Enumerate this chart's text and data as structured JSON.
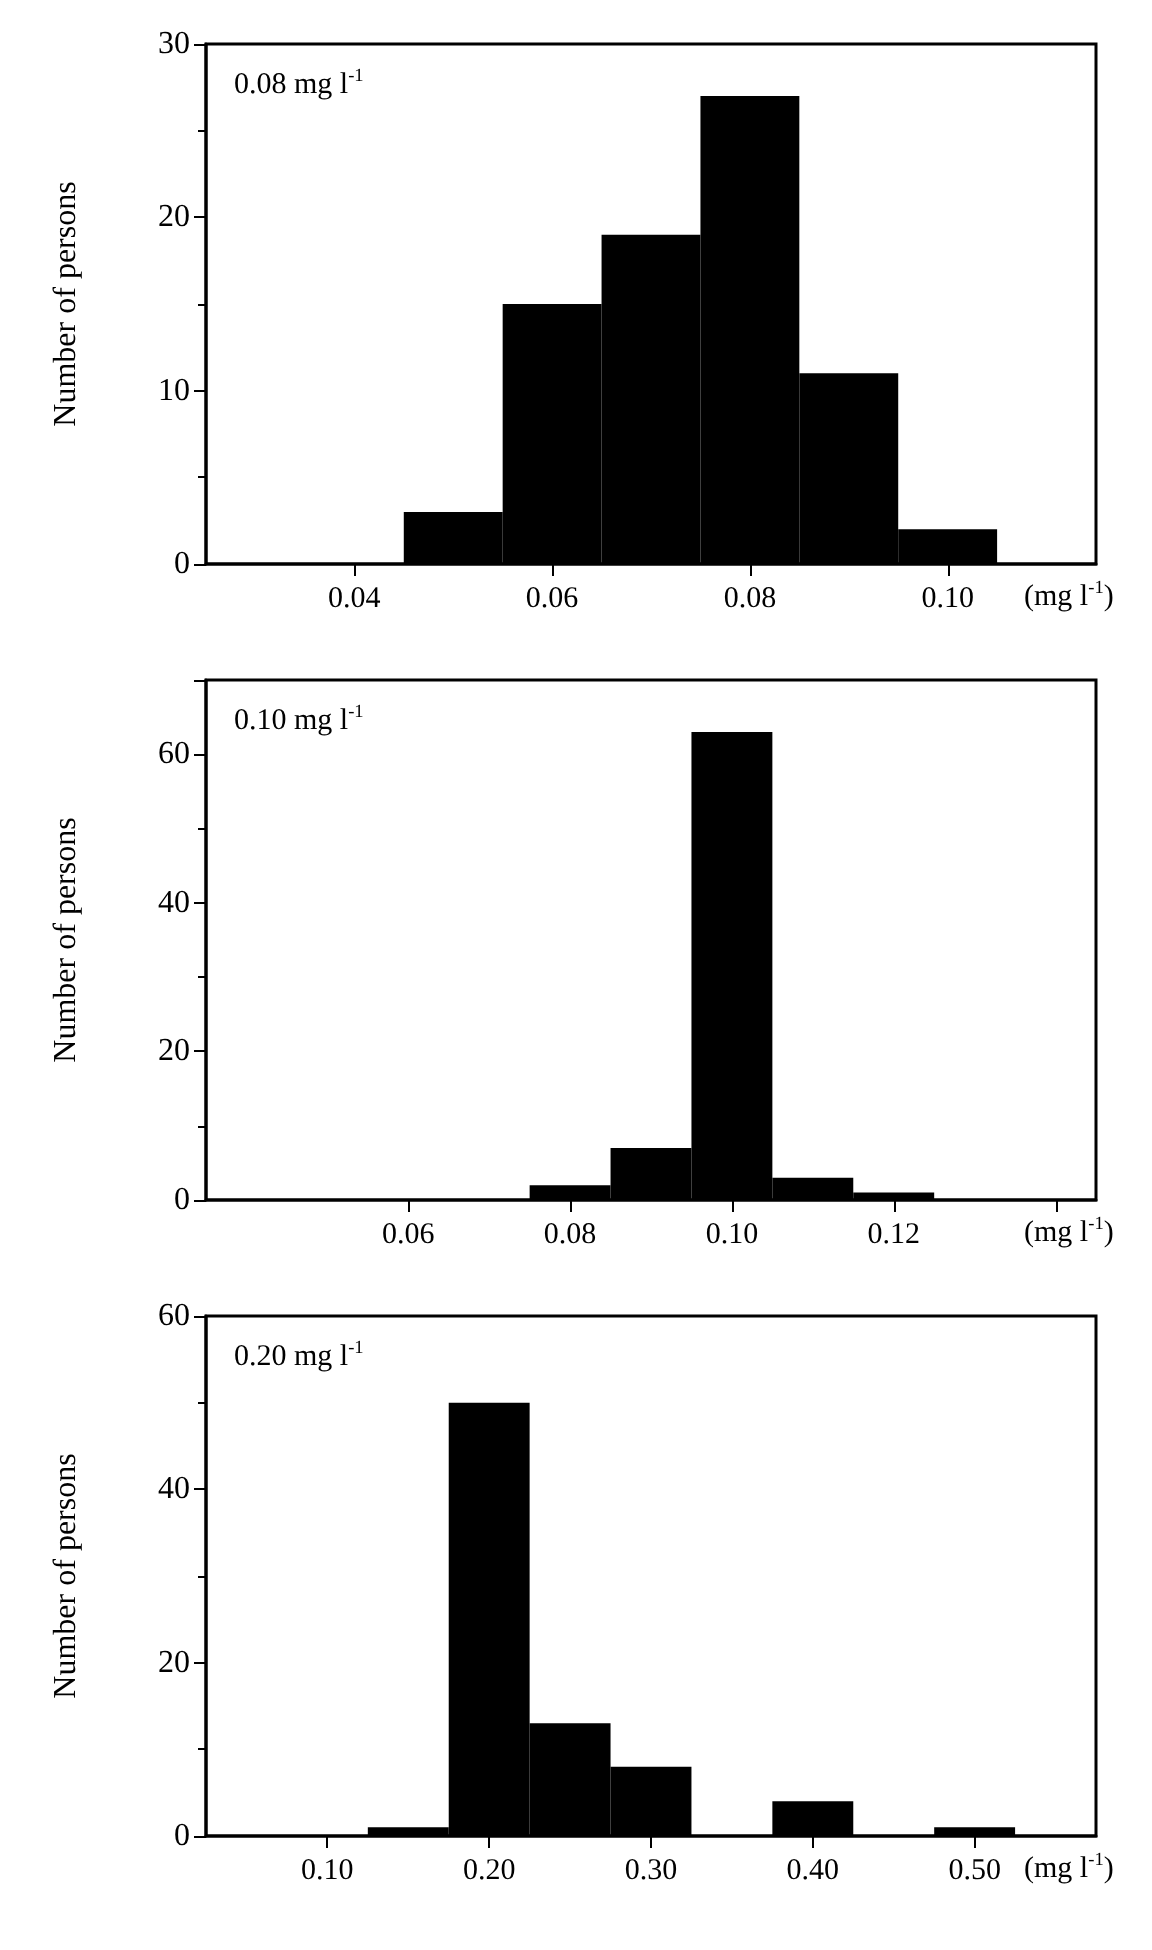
{
  "chart_data": [
    {
      "type": "histogram",
      "annotations": [
        "0.08 mg l$^{-1}$"
      ],
      "xlabel": "(mg l$^{-1}$)",
      "ylabel": "Number of persons",
      "bins": [
        0.045,
        0.055,
        0.065,
        0.075,
        0.085,
        0.095,
        0.105
      ],
      "values": [
        3,
        15,
        19,
        27,
        11,
        2
      ],
      "color": "#000000",
      "xlim": [
        0.025,
        0.115
      ],
      "xticks": [
        0.04,
        0.06,
        0.08,
        {
          "value": 0.1,
          "label": "0.10"
        }
      ],
      "ylim": [
        0,
        30
      ],
      "yticks": [
        0,
        10,
        20,
        30
      ]
    },
    {
      "type": "histogram",
      "annotations": [
        "0.10 mg l$^{-1}$"
      ],
      "xlabel": "(mg l$^{-1}$)",
      "ylabel": "Number of persons",
      "bins": [
        0.075,
        0.085,
        0.095,
        0.105,
        0.115,
        0.125
      ],
      "values": [
        2,
        7,
        63,
        3,
        1
      ],
      "color": "#000000",
      "xlim": [
        0.035,
        0.145
      ],
      "xticks": [
        0.06,
        0.08,
        {
          "value": 0.1,
          "label": "0.10"
        },
        0.12,
        {
          "value": 0.14,
          "label": null
        }
      ],
      "ylim": [
        0,
        70
      ],
      "yticks": [
        0,
        20,
        40,
        60
      ]
    },
    {
      "type": "histogram",
      "annotations": [
        "0.20 mg l$^{-1}$"
      ],
      "xlabel": "(mg l$^{-1}$)",
      "ylabel": "Number of persons",
      "bins": [
        0.125,
        0.175,
        0.225,
        0.275,
        0.325,
        0.375,
        0.425,
        0.475,
        0.525
      ],
      "values": [
        1,
        50,
        13,
        8,
        0,
        4,
        0,
        1
      ],
      "color": "#000000",
      "xlim": [
        0.025,
        0.575
      ],
      "xticks": [
        {
          "value": 0.1,
          "label": "0.10"
        },
        {
          "value": 0.2,
          "label": "0.20"
        },
        {
          "value": 0.3,
          "label": "0.30"
        },
        {
          "value": 0.4,
          "label": "0.40"
        },
        {
          "value": 0.5,
          "label": "0.50"
        }
      ],
      "ylim": [
        0,
        60
      ],
      "yticks": [
        0,
        20,
        40,
        60
      ]
    }
  ]
}
